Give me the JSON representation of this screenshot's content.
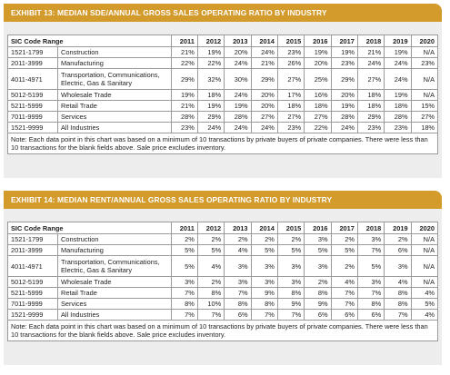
{
  "ex13": {
    "title": "EXHIBIT 13: MEDIAN SDE/ANNUAL GROSS SALES OPERATING RATIO BY INDUSTRY",
    "header_label": "SIC Code Range",
    "years": [
      "2011",
      "2012",
      "2013",
      "2014",
      "2015",
      "2016",
      "2017",
      "2018",
      "2019",
      "2020"
    ],
    "rows": [
      {
        "code": "1521-1799",
        "industry": "Construction",
        "values": [
          "21%",
          "19%",
          "20%",
          "24%",
          "23%",
          "19%",
          "19%",
          "21%",
          "19%",
          "N/A"
        ]
      },
      {
        "code": "2011-3999",
        "industry": "Manufacturing",
        "values": [
          "22%",
          "22%",
          "24%",
          "21%",
          "26%",
          "20%",
          "23%",
          "24%",
          "24%",
          "23%"
        ]
      },
      {
        "code": "4011-4971",
        "industry": "Transportation, Communications, Electric, Gas & Sanitary",
        "values": [
          "29%",
          "32%",
          "30%",
          "29%",
          "27%",
          "25%",
          "29%",
          "27%",
          "24%",
          "N/A"
        ]
      },
      {
        "code": "5012-5199",
        "industry": "Wholesale Trade",
        "values": [
          "19%",
          "18%",
          "24%",
          "20%",
          "17%",
          "16%",
          "20%",
          "18%",
          "19%",
          "N/A"
        ]
      },
      {
        "code": "5211-5999",
        "industry": "Retail Trade",
        "values": [
          "21%",
          "19%",
          "19%",
          "20%",
          "18%",
          "18%",
          "19%",
          "18%",
          "18%",
          "15%"
        ]
      },
      {
        "code": "7011-9999",
        "industry": "Services",
        "values": [
          "28%",
          "29%",
          "28%",
          "27%",
          "27%",
          "27%",
          "28%",
          "29%",
          "28%",
          "27%"
        ]
      },
      {
        "code": "1521-9999",
        "industry": "All Industries",
        "values": [
          "23%",
          "24%",
          "24%",
          "24%",
          "23%",
          "22%",
          "24%",
          "23%",
          "23%",
          "18%"
        ]
      }
    ],
    "note": "Note: Each data point in this chart was based on a minimum of 10 transactions by private buyers of private companies. There were less than 10 transactions for the blank fields above. Sale price excludes inventory."
  },
  "ex14": {
    "title": "EXHIBIT 14: MEDIAN RENT/ANNUAL GROSS SALES OPERATING RATIO BY INDUSTRY",
    "header_label": "SIC Code Range",
    "years": [
      "2011",
      "2012",
      "2013",
      "2014",
      "2015",
      "2016",
      "2017",
      "2018",
      "2019",
      "2020"
    ],
    "rows": [
      {
        "code": "1521-1799",
        "industry": "Construction",
        "values": [
          "2%",
          "2%",
          "2%",
          "2%",
          "2%",
          "3%",
          "2%",
          "3%",
          "2%",
          "N/A"
        ]
      },
      {
        "code": "2011-3999",
        "industry": "Manufacturing",
        "values": [
          "5%",
          "5%",
          "4%",
          "5%",
          "5%",
          "5%",
          "5%",
          "7%",
          "6%",
          "N/A"
        ]
      },
      {
        "code": "4011-4971",
        "industry": "Transportation, Communications, Electric, Gas & Sanitary",
        "values": [
          "5%",
          "4%",
          "3%",
          "3%",
          "3%",
          "3%",
          "2%",
          "5%",
          "3%",
          "N/A"
        ]
      },
      {
        "code": "5012-5199",
        "industry": "Wholesale Trade",
        "values": [
          "3%",
          "2%",
          "3%",
          "3%",
          "3%",
          "2%",
          "4%",
          "3%",
          "4%",
          "N/A"
        ]
      },
      {
        "code": "5211-5999",
        "industry": "Retail Trade",
        "values": [
          "7%",
          "8%",
          "7%",
          "9%",
          "8%",
          "8%",
          "7%",
          "7%",
          "8%",
          "4%"
        ]
      },
      {
        "code": "7011-9999",
        "industry": "Services",
        "values": [
          "8%",
          "10%",
          "8%",
          "8%",
          "9%",
          "9%",
          "7%",
          "8%",
          "8%",
          "5%"
        ]
      },
      {
        "code": "1521-9999",
        "industry": "All Industries",
        "values": [
          "7%",
          "7%",
          "6%",
          "7%",
          "7%",
          "6%",
          "6%",
          "6%",
          "7%",
          "4%"
        ]
      }
    ],
    "note": "Note: Each data point in this chart was based on a minimum of 10 transactions by private buyers of private companies. There were less than 10 transactions for the blank fields above. Sale price excludes inventory."
  }
}
